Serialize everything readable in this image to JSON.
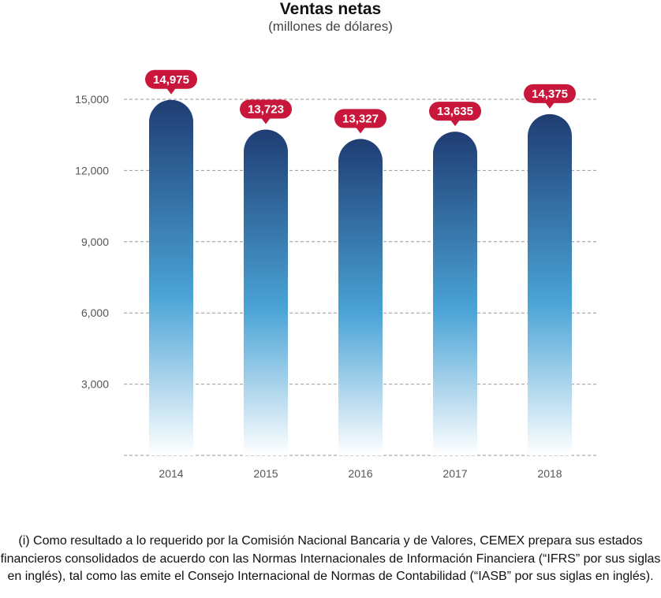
{
  "chart_data": {
    "type": "bar",
    "title": "Ventas netas",
    "subtitle": "(millones de dólares)",
    "categories": [
      "2014",
      "2015",
      "2016",
      "2017",
      "2018"
    ],
    "values": [
      14975,
      13723,
      13327,
      13635,
      14375
    ],
    "data_labels": [
      "14,975",
      "13,723",
      "13,327",
      "13,635",
      "14,375"
    ],
    "yticks": [
      3000,
      6000,
      9000,
      12000,
      15000
    ],
    "ytick_labels": [
      "3,000",
      "6,000",
      "9,000",
      "12,000",
      "15,000"
    ],
    "ylim": [
      0,
      15000
    ],
    "grid": true,
    "colors": {
      "bar_top": "#1f3d73",
      "bar_mid": "#4aa3d6",
      "bar_bottom": "#ffffff",
      "label_bg": "#c8173a",
      "grid": "#999999"
    }
  },
  "footnote": "(i) Como resultado a lo requerido por la Comisión Nacional Bancaria y de Valores, CEMEX prepara sus estados financieros consolidados de acuerdo con las Normas Internacionales de Información Financiera (“IFRS” por sus siglas en inglés), tal como las emite el Consejo Internacional de Normas de Contabilidad (“IASB” por sus siglas en inglés)."
}
